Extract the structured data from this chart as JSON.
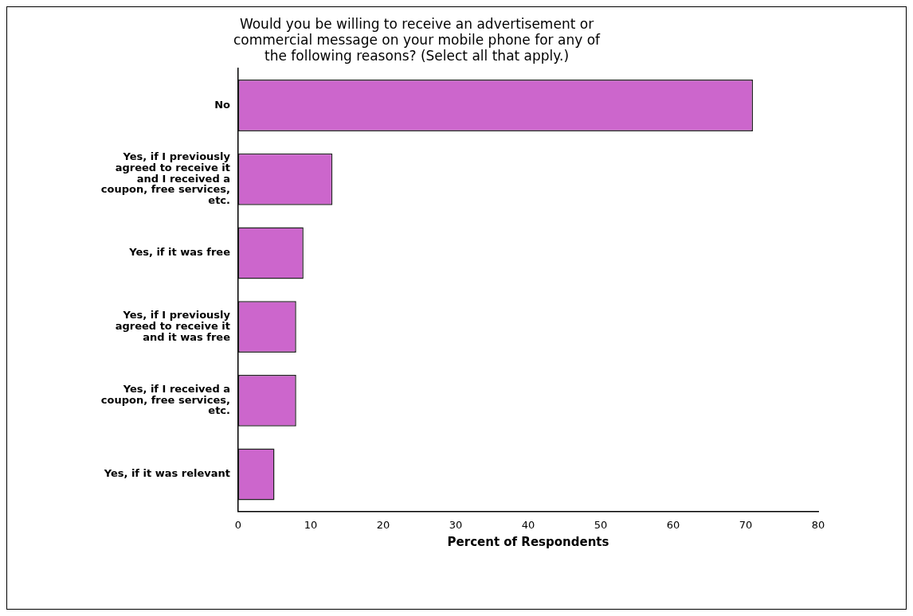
{
  "chart_data": {
    "type": "bar",
    "orientation": "horizontal",
    "title": "Would you be willing to receive an advertisement or commercial message on your mobile phone for any of the following reasons? (Select all that apply.)",
    "xlabel": "Percent of Respondents",
    "categories": [
      "No",
      "Yes, if I previously agreed to receive it and I received a coupon, free services, etc.",
      "Yes, if it was free",
      "Yes, if I previously agreed to receive it and it was free",
      "Yes, if I received a coupon, free services, etc.",
      "Yes, if it was relevant"
    ],
    "values": [
      71,
      13,
      9,
      8,
      8,
      5
    ],
    "color": "#cc66cc",
    "xlim": [
      0,
      80
    ],
    "xticks": [
      0,
      10,
      20,
      30,
      40,
      50,
      60,
      70,
      80
    ],
    "grid": false,
    "legend": false
  }
}
